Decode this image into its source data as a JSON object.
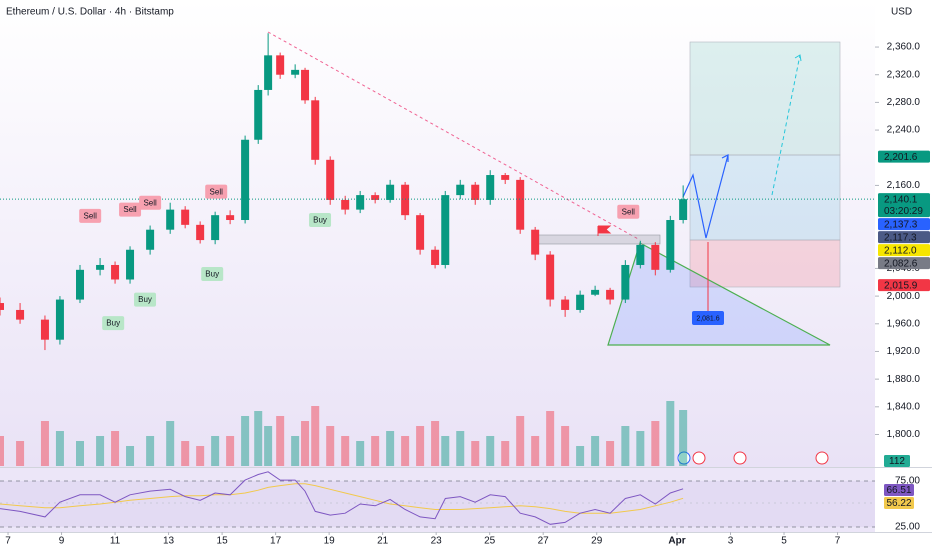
{
  "header": {
    "title": "Ethereum / U.S. Dollar · 4h · Bitstamp",
    "currency": "USD"
  },
  "chart_data": {
    "type": "candlestick",
    "up_color": "#089981",
    "down_color": "#f23645",
    "x": [
      -0.3,
      0.45,
      1.38,
      1.94,
      2.69,
      3.44,
      4.0,
      4.56,
      5.31,
      6.06,
      6.62,
      7.18,
      7.74,
      8.3,
      8.86,
      9.35,
      9.72,
      10.17,
      10.73,
      11.1,
      11.48,
      12.04,
      12.6,
      13.16,
      13.72,
      14.28,
      14.84,
      15.4,
      15.96,
      16.34,
      16.9,
      17.46,
      18.02,
      18.58,
      19.14,
      19.7,
      20.26,
      20.82,
      21.38,
      21.94,
      22.5,
      23.07,
      23.63,
      24.19,
      24.75,
      25.23
    ],
    "open": [
      1990,
      1980,
      1966,
      1937,
      1995,
      2038,
      2045,
      2024,
      2067,
      2096,
      2125,
      2103,
      2081,
      2117,
      2110,
      2226,
      2298,
      2348,
      2320,
      2327,
      2283,
      2197,
      2139,
      2125,
      2146,
      2139,
      2161,
      2117,
      2067,
      2045,
      2146,
      2161,
      2139,
      2175,
      2168,
      2096,
      2060,
      1995,
      1980,
      2002,
      2009,
      1995,
      2045,
      2074,
      2038,
      2110
    ],
    "high": [
      1998,
      1990,
      1972,
      2000,
      2045,
      2055,
      2050,
      2072,
      2102,
      2135,
      2130,
      2108,
      2122,
      2124,
      2232,
      2305,
      2380,
      2352,
      2335,
      2330,
      2288,
      2202,
      2145,
      2152,
      2150,
      2168,
      2165,
      2120,
      2072,
      2152,
      2168,
      2165,
      2182,
      2178,
      2172,
      2100,
      2065,
      2000,
      2008,
      2015,
      2012,
      2052,
      2080,
      2078,
      2116,
      2160
    ],
    "low": [
      1972,
      1960,
      1922,
      1930,
      1990,
      2030,
      2018,
      2018,
      2060,
      2090,
      2098,
      2076,
      2075,
      2104,
      2105,
      2220,
      2290,
      2314,
      2315,
      2278,
      2190,
      2132,
      2118,
      2120,
      2134,
      2135,
      2110,
      2060,
      2040,
      2040,
      2140,
      2132,
      2132,
      2162,
      2090,
      2052,
      1985,
      1970,
      1976,
      2000,
      1988,
      1990,
      2040,
      2030,
      2034,
      2105
    ],
    "close": [
      1980,
      1966,
      1937,
      1995,
      2038,
      2045,
      2024,
      2067,
      2096,
      2125,
      2103,
      2081,
      2117,
      2110,
      2226,
      2298,
      2348,
      2320,
      2327,
      2283,
      2197,
      2139,
      2125,
      2146,
      2139,
      2161,
      2117,
      2067,
      2045,
      2146,
      2161,
      2139,
      2175,
      2168,
      2096,
      2060,
      1995,
      1980,
      2002,
      2009,
      1995,
      2045,
      2074,
      2038,
      2110,
      2140.1
    ],
    "xlim": [
      -0.3,
      32.4
    ],
    "xticks": [
      {
        "value": 0,
        "label": "7"
      },
      {
        "value": 2,
        "label": "9"
      },
      {
        "value": 4,
        "label": "11"
      },
      {
        "value": 6,
        "label": "13"
      },
      {
        "value": 8,
        "label": "15"
      },
      {
        "value": 10,
        "label": "17"
      },
      {
        "value": 12,
        "label": "19"
      },
      {
        "value": 14,
        "label": "21"
      },
      {
        "value": 16,
        "label": "23"
      },
      {
        "value": 18,
        "label": "25"
      },
      {
        "value": 20,
        "label": "27"
      },
      {
        "value": 22,
        "label": "29"
      },
      {
        "value": 25,
        "label": "Apr"
      },
      {
        "value": 27,
        "label": "3"
      },
      {
        "value": 29,
        "label": "5"
      },
      {
        "value": 31,
        "label": "7"
      }
    ],
    "ylim": [
      1753,
      2428
    ],
    "yticks": [
      {
        "value": 2360,
        "label": "2,360.0"
      },
      {
        "value": 2320,
        "label": "2,320.0"
      },
      {
        "value": 2280,
        "label": "2,280.0"
      },
      {
        "value": 2240,
        "label": "2,240.0"
      },
      {
        "value": 2160,
        "label": "2,160.0"
      },
      {
        "value": 2040,
        "label": "2,040.0"
      },
      {
        "value": 2000,
        "label": "2,000.0"
      },
      {
        "value": 1960,
        "label": "1,960.0"
      },
      {
        "value": 1920,
        "label": "1,920.0"
      },
      {
        "value": 1880,
        "label": "1,880.0"
      },
      {
        "value": 1840,
        "label": "1,840.0"
      },
      {
        "value": 1800,
        "label": "1,800.0"
      }
    ],
    "volume": {
      "values": [
        60,
        50,
        90,
        70,
        50,
        60,
        70,
        40,
        60,
        90,
        50,
        40,
        60,
        60,
        100,
        110,
        80,
        100,
        60,
        90,
        120,
        80,
        60,
        50,
        60,
        70,
        60,
        80,
        90,
        60,
        70,
        50,
        60,
        50,
        100,
        60,
        110,
        80,
        40,
        60,
        50,
        80,
        70,
        90,
        130,
        112
      ],
      "ylim": [
        0,
        240
      ]
    },
    "price_labels": [
      {
        "value": 2201.6,
        "label": "2,201.6",
        "color": "#089981"
      },
      {
        "value": 2140.1,
        "label": "2,140.1",
        "countdown": "03:20:29",
        "color": "#089981"
      },
      {
        "value": 2137.3,
        "label": "2,137.3",
        "color": "#2962ff"
      },
      {
        "value": 2117.3,
        "label": "2,117.3",
        "color": "#4b5a86"
      },
      {
        "value": 2112.0,
        "label": "2,112.0",
        "color": "#f7e600"
      },
      {
        "value": 2082.6,
        "label": "2,082.6",
        "color": "#787b86"
      },
      {
        "value": 2015.9,
        "label": "2,015.9",
        "color": "#f23645"
      }
    ],
    "projection": {
      "value": 2081.6,
      "label": "2,081.6"
    },
    "signals": [
      {
        "label": "Sell",
        "x": 3.07,
        "y": 2116
      },
      {
        "label": "Sell",
        "x": 4.56,
        "y": 2125
      },
      {
        "label": "Sell",
        "x": 5.31,
        "y": 2135
      },
      {
        "label": "Sell",
        "x": 7.78,
        "y": 2151
      },
      {
        "label": "Sell",
        "x": 23.18,
        "y": 2122
      },
      {
        "label": "Buy",
        "x": 11.66,
        "y": 2110
      },
      {
        "label": "Buy",
        "x": 7.63,
        "y": 2032
      },
      {
        "label": "Buy",
        "x": 5.12,
        "y": 1995
      },
      {
        "label": "Buy",
        "x": 3.93,
        "y": 1961
      }
    ],
    "rsi": {
      "color": "#7e57c2",
      "ma_color": "#f2c94c",
      "values": [
        45,
        42,
        36,
        52,
        60,
        60,
        52,
        60,
        64,
        66,
        58,
        54,
        62,
        60,
        76,
        82,
        85,
        76,
        76,
        64,
        42,
        38,
        40,
        50,
        48,
        55,
        44,
        36,
        34,
        56,
        58,
        52,
        60,
        58,
        40,
        36,
        28,
        30,
        40,
        44,
        40,
        56,
        60,
        50,
        62,
        66.51
      ],
      "ma_values": [
        50,
        48,
        46,
        46,
        48,
        50,
        52,
        54,
        56,
        58,
        59,
        59,
        60,
        60,
        62,
        65,
        68,
        70,
        72,
        72,
        70,
        66,
        62,
        58,
        54,
        50,
        48,
        46,
        44,
        44,
        44,
        45,
        46,
        47,
        48,
        47,
        45,
        42,
        40,
        40,
        40,
        42,
        44,
        48,
        52,
        56.22
      ],
      "ylim": [
        19.6,
        89.1
      ],
      "yticks": [
        {
          "value": 75,
          "label": "75.00"
        },
        {
          "value": 25,
          "label": "25.00"
        }
      ]
    }
  }
}
